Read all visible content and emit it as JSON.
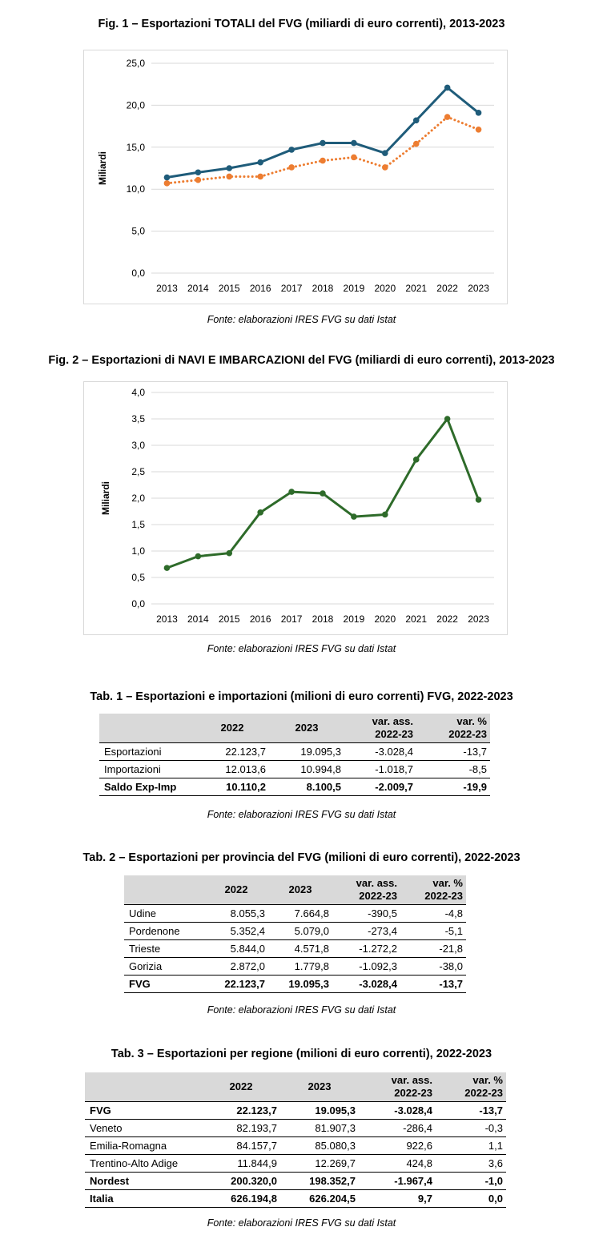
{
  "fig1": {
    "title": "Fig. 1 – Esportazioni TOTALI del FVG (miliardi di euro correnti), 2013-2023",
    "source": "Fonte: elaborazioni IRES FVG su dati Istat"
  },
  "fig2": {
    "title": "Fig. 2 – Esportazioni di NAVI E IMBARCAZIONI del FVG (miliardi di euro correnti), 2013-2023",
    "source": "Fonte: elaborazioni IRES FVG su dati Istat"
  },
  "chart_data": [
    {
      "type": "line",
      "title": "Fig. 1 – Esportazioni TOTALI del FVG (miliardi di euro correnti), 2013-2023",
      "xlabel": "",
      "ylabel": "Miliardi",
      "x": [
        "2013",
        "2014",
        "2015",
        "2016",
        "2017",
        "2018",
        "2019",
        "2020",
        "2021",
        "2022",
        "2023"
      ],
      "yticks": [
        "0,0",
        "5,0",
        "10,0",
        "15,0",
        "20,0",
        "25,0"
      ],
      "ylim": [
        0,
        25
      ],
      "grid": true,
      "legend": "none",
      "series": [
        {
          "color": "#1f5c7a",
          "style": "solid",
          "values": [
            11.4,
            12.0,
            12.5,
            13.2,
            14.7,
            15.5,
            15.5,
            14.3,
            18.2,
            22.1,
            19.1
          ]
        },
        {
          "color": "#ed7d31",
          "style": "dotted",
          "values": [
            10.7,
            11.1,
            11.5,
            11.5,
            12.6,
            13.4,
            13.8,
            12.6,
            15.4,
            18.6,
            17.1
          ]
        }
      ]
    },
    {
      "type": "line",
      "title": "Fig. 2 – Esportazioni di NAVI E IMBARCAZIONI del FVG (miliardi di euro correnti), 2013-2023",
      "xlabel": "",
      "ylabel": "Miliardi",
      "x": [
        "2013",
        "2014",
        "2015",
        "2016",
        "2017",
        "2018",
        "2019",
        "2020",
        "2021",
        "2022",
        "2023"
      ],
      "yticks": [
        "0,0",
        "0,5",
        "1,0",
        "1,5",
        "2,0",
        "2,5",
        "3,0",
        "3,5",
        "4,0"
      ],
      "ylim": [
        0,
        4
      ],
      "grid": true,
      "legend": "none",
      "series": [
        {
          "color": "#2e6b2a",
          "style": "solid",
          "values": [
            0.68,
            0.9,
            0.96,
            1.73,
            2.12,
            2.09,
            1.65,
            1.69,
            2.73,
            3.5,
            1.97
          ]
        }
      ]
    }
  ],
  "tab1": {
    "title": "Tab. 1 – Esportazioni e importazioni (milioni di euro correnti) FVG, 2022-2023",
    "source": "Fonte: elaborazioni IRES FVG su dati Istat",
    "headers": [
      "",
      "2022",
      "2023",
      "var. ass.\n2022-23",
      "var. %\n2022-23"
    ],
    "rows": [
      {
        "label": "Esportazioni",
        "v2022": "22.123,7",
        "v2023": "19.095,3",
        "ass": "-3.028,4",
        "pct": "-13,7",
        "bold": false
      },
      {
        "label": "Importazioni",
        "v2022": "12.013,6",
        "v2023": "10.994,8",
        "ass": "-1.018,7",
        "pct": "-8,5",
        "bold": false
      },
      {
        "label": "Saldo Exp-Imp",
        "v2022": "10.110,2",
        "v2023": "8.100,5",
        "ass": "-2.009,7",
        "pct": "-19,9",
        "bold": true
      }
    ]
  },
  "tab2": {
    "title": "Tab. 2 – Esportazioni per provincia del FVG (milioni di euro correnti), 2022-2023",
    "source": "Fonte: elaborazioni IRES FVG su dati Istat",
    "headers": [
      "",
      "2022",
      "2023",
      "var. ass.\n2022-23",
      "var. %\n2022-23"
    ],
    "rows": [
      {
        "label": "Udine",
        "v2022": "8.055,3",
        "v2023": "7.664,8",
        "ass": "-390,5",
        "pct": "-4,8",
        "bold": false
      },
      {
        "label": "Pordenone",
        "v2022": "5.352,4",
        "v2023": "5.079,0",
        "ass": "-273,4",
        "pct": "-5,1",
        "bold": false
      },
      {
        "label": "Trieste",
        "v2022": "5.844,0",
        "v2023": "4.571,8",
        "ass": "-1.272,2",
        "pct": "-21,8",
        "bold": false
      },
      {
        "label": "Gorizia",
        "v2022": "2.872,0",
        "v2023": "1.779,8",
        "ass": "-1.092,3",
        "pct": "-38,0",
        "bold": false
      },
      {
        "label": "FVG",
        "v2022": "22.123,7",
        "v2023": "19.095,3",
        "ass": "-3.028,4",
        "pct": "-13,7",
        "bold": true
      }
    ]
  },
  "tab3": {
    "title": "Tab. 3 – Esportazioni per regione (milioni di euro correnti), 2022-2023",
    "source": "Fonte: elaborazioni IRES FVG su dati Istat",
    "headers": [
      "",
      "2022",
      "2023",
      "var. ass.\n2022-23",
      "var. %\n2022-23"
    ],
    "rows": [
      {
        "label": "FVG",
        "v2022": "22.123,7",
        "v2023": "19.095,3",
        "ass": "-3.028,4",
        "pct": "-13,7",
        "bold": true
      },
      {
        "label": "Veneto",
        "v2022": "82.193,7",
        "v2023": "81.907,3",
        "ass": "-286,4",
        "pct": "-0,3",
        "bold": false
      },
      {
        "label": "Emilia-Romagna",
        "v2022": "84.157,7",
        "v2023": "85.080,3",
        "ass": "922,6",
        "pct": "1,1",
        "bold": false
      },
      {
        "label": "Trentino-Alto Adige",
        "v2022": "11.844,9",
        "v2023": "12.269,7",
        "ass": "424,8",
        "pct": "3,6",
        "bold": false
      },
      {
        "label": "Nordest",
        "v2022": "200.320,0",
        "v2023": "198.352,7",
        "ass": "-1.967,4",
        "pct": "-1,0",
        "bold": true
      },
      {
        "label": "Italia",
        "v2022": "626.194,8",
        "v2023": "626.204,5",
        "ass": "9,7",
        "pct": "0,0",
        "bold": true
      }
    ]
  }
}
